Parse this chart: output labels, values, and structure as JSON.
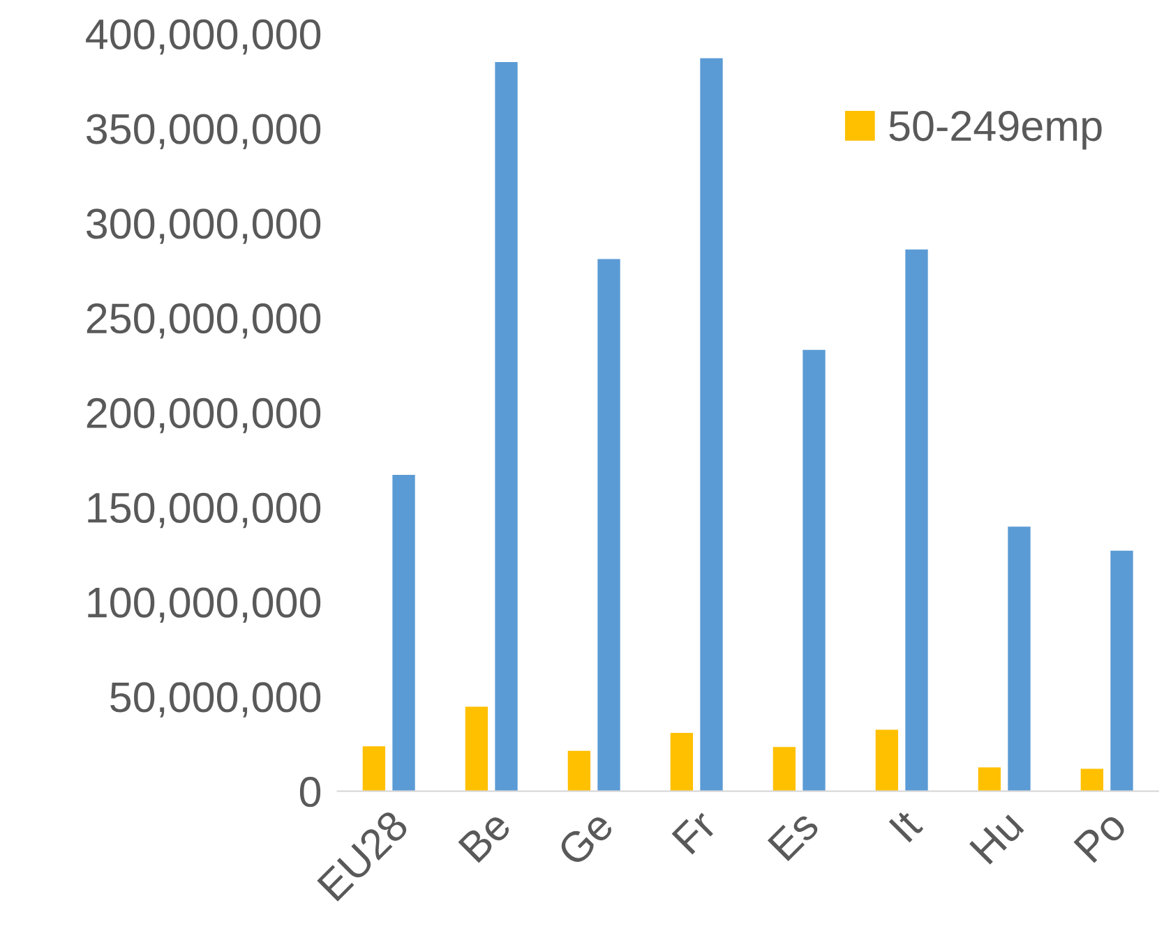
{
  "chart_data": {
    "type": "bar",
    "categories": [
      "EU28",
      "Be",
      "Ge",
      "Fr",
      "Es",
      "It",
      "Hu",
      "Po"
    ],
    "series": [
      {
        "name": "50-249emp",
        "color": "#ffc000",
        "values": [
          23700000,
          44600000,
          21300000,
          30800000,
          23300000,
          32400000,
          12600000,
          11800000
        ]
      },
      {
        "color": "#5b9bd5",
        "values": [
          167000000,
          385000000,
          281000000,
          387000000,
          233000000,
          286000000,
          139700000,
          127000000
        ]
      }
    ],
    "ylim": [
      0,
      400000000
    ],
    "yticks": [
      0,
      {
        "value": 50000000,
        "label": "50,000,000"
      },
      {
        "value": 100000000,
        "label": "100,000,000"
      },
      {
        "value": 150000000,
        "label": "150,000,000"
      },
      {
        "value": 200000000,
        "label": "200,000,000"
      },
      {
        "value": 250000000,
        "label": "250,000,000"
      },
      {
        "value": 300000000,
        "label": "300,000,000"
      },
      {
        "value": 350000000,
        "label": "350,000,000"
      },
      {
        "value": 400000000,
        "label": "400,000,000"
      }
    ],
    "grid": false,
    "legend": "top right"
  }
}
